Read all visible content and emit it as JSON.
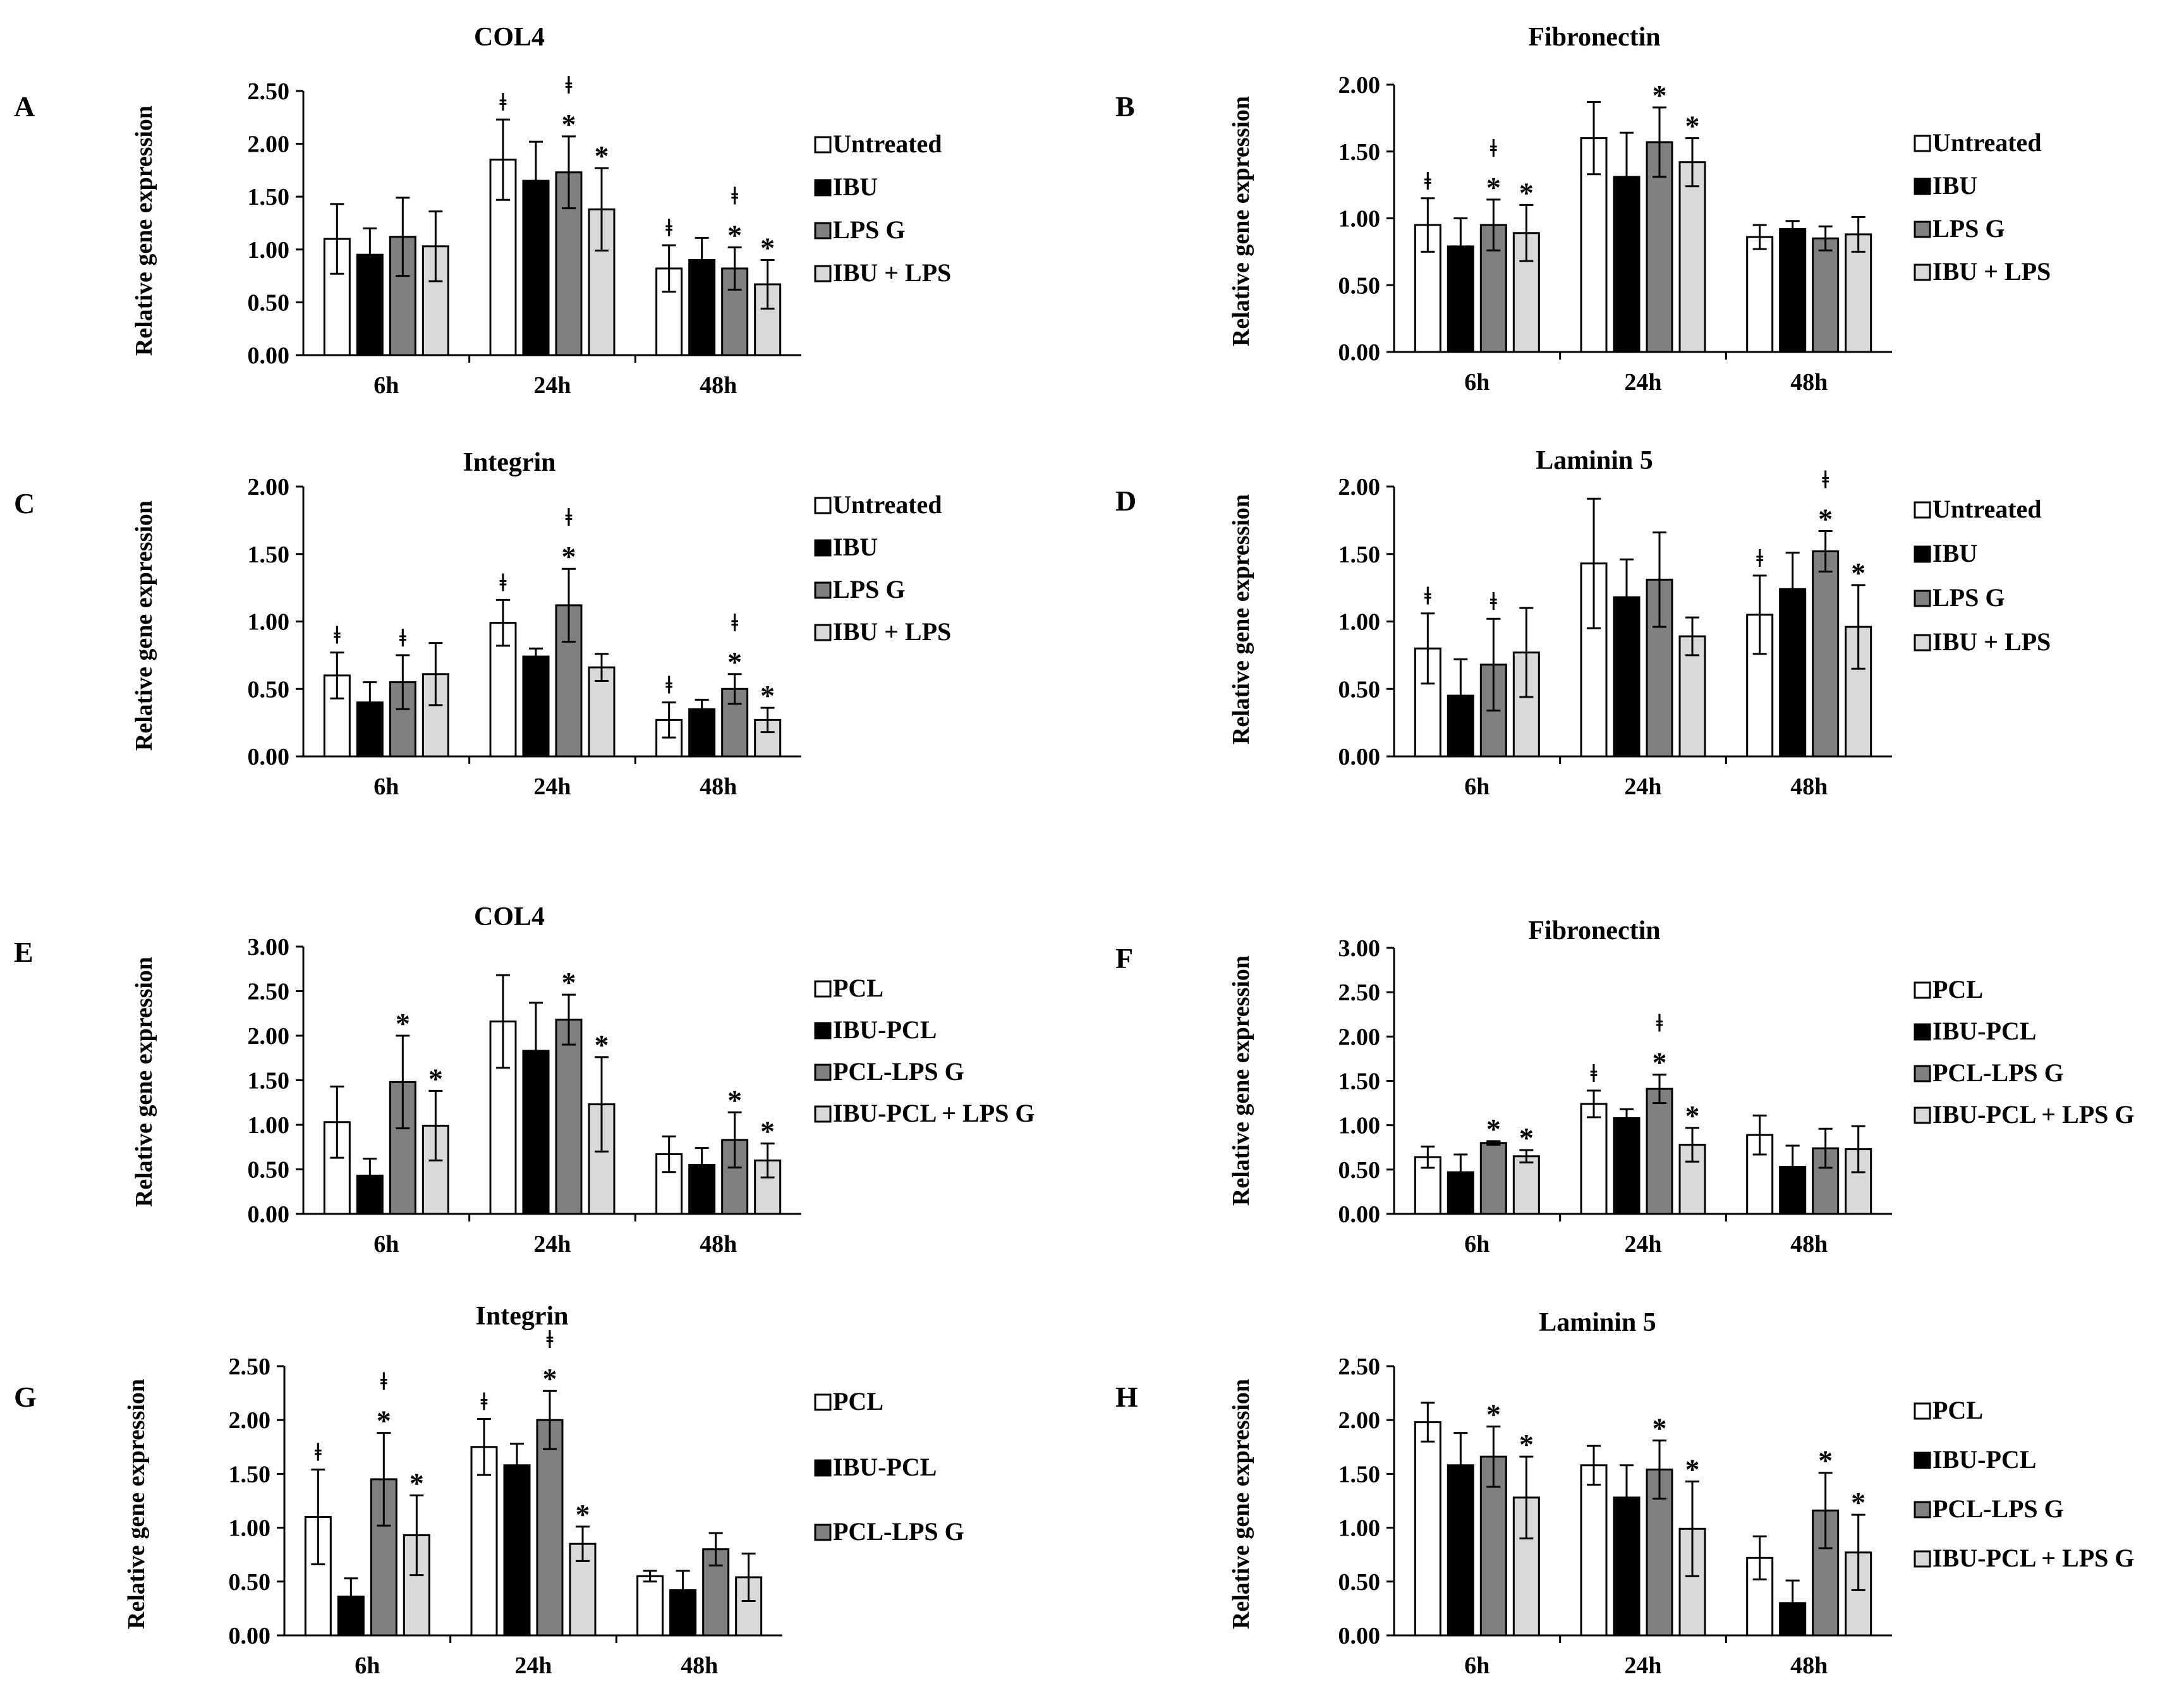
{
  "figure": {
    "ylabel": "Relative gene expression",
    "time_points": [
      "6h",
      "24h",
      "48h"
    ]
  },
  "colors": {
    "groups": [
      "#ffffff",
      "#000000",
      "#808080",
      "#d9d9d9"
    ],
    "stroke": "#000000"
  },
  "chart_data": [
    {
      "type": "bar",
      "letter": "A",
      "title": "COL4",
      "categories": [
        "6h",
        "24h",
        "48h"
      ],
      "ylim": [
        0,
        2.5
      ],
      "ticks": [
        "0.00",
        "0.50",
        "1.00",
        "1.50",
        "2.00",
        "2.50"
      ],
      "legend": [
        "Untreated",
        "IBU",
        "LPS G",
        "IBU + LPS"
      ],
      "series": [
        {
          "name": "Untreated",
          "values": [
            1.1,
            1.85,
            0.82
          ],
          "errors": [
            0.33,
            0.38,
            0.22
          ]
        },
        {
          "name": "IBU",
          "values": [
            0.95,
            1.65,
            0.9
          ],
          "errors": [
            0.25,
            0.37,
            0.21
          ]
        },
        {
          "name": "LPS G",
          "values": [
            1.12,
            1.73,
            0.82
          ],
          "errors": [
            0.37,
            0.34,
            0.2
          ]
        },
        {
          "name": "IBU + LPS",
          "values": [
            1.03,
            1.38,
            0.67
          ],
          "errors": [
            0.33,
            0.39,
            0.23
          ]
        }
      ],
      "annotations": [
        {
          "category": 1,
          "series": 0,
          "text": "ǂ"
        },
        {
          "category": 1,
          "series": 2,
          "text": "ǂ*"
        },
        {
          "category": 1,
          "series": 3,
          "text": "*"
        },
        {
          "category": 2,
          "series": 0,
          "text": "ǂ"
        },
        {
          "category": 2,
          "series": 2,
          "text": "ǂ*"
        },
        {
          "category": 2,
          "series": 3,
          "text": "*"
        }
      ]
    },
    {
      "type": "bar",
      "letter": "B",
      "title": "Fibronectin",
      "categories": [
        "6h",
        "24h",
        "48h"
      ],
      "ylim": [
        0,
        2.0
      ],
      "ticks": [
        "0.00",
        "0.50",
        "1.00",
        "1.50",
        "2.00"
      ],
      "legend": [
        "Untreated",
        "IBU",
        "LPS G",
        "IBU + LPS"
      ],
      "series": [
        {
          "name": "Untreated",
          "values": [
            0.95,
            1.6,
            0.86
          ],
          "errors": [
            0.2,
            0.27,
            0.09
          ]
        },
        {
          "name": "IBU",
          "values": [
            0.79,
            1.31,
            0.92
          ],
          "errors": [
            0.21,
            0.33,
            0.06
          ]
        },
        {
          "name": "LPS G",
          "values": [
            0.95,
            1.57,
            0.85
          ],
          "errors": [
            0.19,
            0.26,
            0.09
          ]
        },
        {
          "name": "IBU + LPS",
          "values": [
            0.89,
            1.42,
            0.88
          ],
          "errors": [
            0.21,
            0.18,
            0.13
          ]
        }
      ],
      "annotations": [
        {
          "category": 0,
          "series": 0,
          "text": "ǂ"
        },
        {
          "category": 0,
          "series": 2,
          "text": "ǂ*"
        },
        {
          "category": 0,
          "series": 3,
          "text": "*"
        },
        {
          "category": 1,
          "series": 2,
          "text": "*"
        },
        {
          "category": 1,
          "series": 3,
          "text": "*"
        }
      ]
    },
    {
      "type": "bar",
      "letter": "C",
      "title": "Integrin",
      "categories": [
        "6h",
        "24h",
        "48h"
      ],
      "ylim": [
        0,
        2.0
      ],
      "ticks": [
        "0.00",
        "0.50",
        "1.00",
        "1.50",
        "2.00"
      ],
      "legend": [
        "Untreated",
        "IBU",
        "LPS G",
        "IBU + LPS"
      ],
      "series": [
        {
          "name": "Untreated",
          "values": [
            0.6,
            0.99,
            0.27
          ],
          "errors": [
            0.17,
            0.17,
            0.13
          ]
        },
        {
          "name": "IBU",
          "values": [
            0.4,
            0.74,
            0.35
          ],
          "errors": [
            0.15,
            0.06,
            0.07
          ]
        },
        {
          "name": "LPS G",
          "values": [
            0.55,
            1.12,
            0.5
          ],
          "errors": [
            0.2,
            0.27,
            0.11
          ]
        },
        {
          "name": "IBU + LPS",
          "values": [
            0.61,
            0.66,
            0.27
          ],
          "errors": [
            0.23,
            0.1,
            0.09
          ]
        }
      ],
      "annotations": [
        {
          "category": 0,
          "series": 0,
          "text": "ǂ"
        },
        {
          "category": 0,
          "series": 2,
          "text": "ǂ"
        },
        {
          "category": 1,
          "series": 0,
          "text": "ǂ"
        },
        {
          "category": 1,
          "series": 2,
          "text": "ǂ*"
        },
        {
          "category": 2,
          "series": 0,
          "text": "ǂ"
        },
        {
          "category": 2,
          "series": 2,
          "text": "ǂ*"
        },
        {
          "category": 2,
          "series": 3,
          "text": "*"
        }
      ]
    },
    {
      "type": "bar",
      "letter": "D",
      "title": "Laminin 5",
      "categories": [
        "6h",
        "24h",
        "48h"
      ],
      "ylim": [
        0,
        2.0
      ],
      "ticks": [
        "0.00",
        "0.50",
        "1.00",
        "1.50",
        "2.00"
      ],
      "legend": [
        "Untreated",
        "IBU",
        "LPS G",
        "IBU + LPS"
      ],
      "series": [
        {
          "name": "Untreated",
          "values": [
            0.8,
            1.43,
            1.05
          ],
          "errors": [
            0.26,
            0.48,
            0.29
          ]
        },
        {
          "name": "IBU",
          "values": [
            0.45,
            1.18,
            1.24
          ],
          "errors": [
            0.27,
            0.28,
            0.27
          ]
        },
        {
          "name": "LPS G",
          "values": [
            0.68,
            1.31,
            1.52
          ],
          "errors": [
            0.34,
            0.35,
            0.15
          ]
        },
        {
          "name": "IBU + LPS",
          "values": [
            0.77,
            0.89,
            0.96
          ],
          "errors": [
            0.33,
            0.14,
            0.31
          ]
        }
      ],
      "annotations": [
        {
          "category": 0,
          "series": 0,
          "text": "ǂ"
        },
        {
          "category": 0,
          "series": 2,
          "text": "ǂ"
        },
        {
          "category": 2,
          "series": 0,
          "text": "ǂ"
        },
        {
          "category": 2,
          "series": 2,
          "text": "ǂ*"
        },
        {
          "category": 2,
          "series": 3,
          "text": "*"
        }
      ]
    },
    {
      "type": "bar",
      "letter": "E",
      "title": "COL4",
      "categories": [
        "6h",
        "24h",
        "48h"
      ],
      "ylim": [
        0,
        3.0
      ],
      "ticks": [
        "0.00",
        "0.50",
        "1.00",
        "1.50",
        "2.00",
        "2.50",
        "3.00"
      ],
      "legend": [
        "PCL",
        "IBU-PCL",
        "PCL-LPS G",
        "IBU-PCL + LPS G"
      ],
      "series": [
        {
          "name": "PCL",
          "values": [
            1.03,
            2.16,
            0.67
          ],
          "errors": [
            0.4,
            0.52,
            0.2
          ]
        },
        {
          "name": "IBU-PCL",
          "values": [
            0.43,
            1.83,
            0.55
          ],
          "errors": [
            0.19,
            0.54,
            0.19
          ]
        },
        {
          "name": "PCL-LPS G",
          "values": [
            1.48,
            2.18,
            0.83
          ],
          "errors": [
            0.52,
            0.28,
            0.31
          ]
        },
        {
          "name": "IBU-PCL + LPS G",
          "values": [
            0.99,
            1.23,
            0.6
          ],
          "errors": [
            0.39,
            0.53,
            0.19
          ]
        }
      ],
      "annotations": [
        {
          "category": 0,
          "series": 2,
          "text": "*"
        },
        {
          "category": 0,
          "series": 3,
          "text": "*"
        },
        {
          "category": 1,
          "series": 2,
          "text": "*"
        },
        {
          "category": 1,
          "series": 3,
          "text": "*"
        },
        {
          "category": 2,
          "series": 2,
          "text": "*"
        },
        {
          "category": 2,
          "series": 3,
          "text": "*"
        }
      ]
    },
    {
      "type": "bar",
      "letter": "F",
      "title": "Fibronectin",
      "categories": [
        "6h",
        "24h",
        "48h"
      ],
      "ylim": [
        0,
        3.0
      ],
      "ticks": [
        "0.00",
        "0.50",
        "1.00",
        "1.50",
        "2.00",
        "2.50",
        "3.00"
      ],
      "legend": [
        "PCL",
        "IBU-PCL",
        "PCL-LPS G",
        "IBU-PCL + LPS G"
      ],
      "series": [
        {
          "name": "PCL",
          "values": [
            0.64,
            1.24,
            0.89
          ],
          "errors": [
            0.12,
            0.15,
            0.22
          ]
        },
        {
          "name": "IBU-PCL",
          "values": [
            0.47,
            1.08,
            0.53
          ],
          "errors": [
            0.2,
            0.1,
            0.24
          ]
        },
        {
          "name": "PCL-LPS G",
          "values": [
            0.8,
            1.41,
            0.74
          ],
          "errors": [
            0.02,
            0.16,
            0.22
          ]
        },
        {
          "name": "IBU-PCL + LPS G",
          "values": [
            0.65,
            0.78,
            0.73
          ],
          "errors": [
            0.07,
            0.19,
            0.26
          ]
        }
      ],
      "annotations": [
        {
          "category": 0,
          "series": 2,
          "text": "*"
        },
        {
          "category": 0,
          "series": 3,
          "text": "*"
        },
        {
          "category": 1,
          "series": 0,
          "text": "ǂ"
        },
        {
          "category": 1,
          "series": 2,
          "text": "ǂ*"
        },
        {
          "category": 1,
          "series": 3,
          "text": "*"
        }
      ]
    },
    {
      "type": "bar",
      "letter": "G",
      "title": "Integrin",
      "categories": [
        "6h",
        "24h",
        "48h"
      ],
      "ylim": [
        0,
        2.5
      ],
      "ticks": [
        "0.00",
        "0.50",
        "1.00",
        "1.50",
        "2.00",
        "2.50"
      ],
      "legend": [
        "PCL",
        "IBU-PCL",
        "PCL-LPS G"
      ],
      "series": [
        {
          "name": "PCL",
          "values": [
            1.1,
            1.75,
            0.55
          ],
          "errors": [
            0.44,
            0.26,
            0.05
          ]
        },
        {
          "name": "IBU-PCL",
          "values": [
            0.36,
            1.58,
            0.42
          ],
          "errors": [
            0.17,
            0.2,
            0.18
          ]
        },
        {
          "name": "PCL-LPS G",
          "values": [
            1.45,
            2.0,
            0.8
          ],
          "errors": [
            0.43,
            0.27,
            0.15
          ]
        },
        {
          "name": "",
          "values": [
            0.93,
            0.85,
            0.54
          ],
          "errors": [
            0.37,
            0.16,
            0.22
          ]
        }
      ],
      "annotations": [
        {
          "category": 0,
          "series": 0,
          "text": "ǂ"
        },
        {
          "category": 0,
          "series": 2,
          "text": "ǂ*"
        },
        {
          "category": 0,
          "series": 3,
          "text": "*"
        },
        {
          "category": 1,
          "series": 0,
          "text": "ǂ"
        },
        {
          "category": 1,
          "series": 2,
          "text": "ǂ*"
        },
        {
          "category": 1,
          "series": 3,
          "text": "*"
        }
      ]
    },
    {
      "type": "bar",
      "letter": "H",
      "title": "Laminin 5",
      "categories": [
        "6h",
        "24h",
        "48h"
      ],
      "ylim": [
        0,
        2.5
      ],
      "ticks": [
        "0.00",
        "0.50",
        "1.00",
        "1.50",
        "2.00",
        "2.50"
      ],
      "legend": [
        "PCL",
        "IBU-PCL",
        "PCL-LPS G",
        "IBU-PCL + LPS G"
      ],
      "series": [
        {
          "name": "PCL",
          "values": [
            1.98,
            1.58,
            0.72
          ],
          "errors": [
            0.18,
            0.18,
            0.2
          ]
        },
        {
          "name": "IBU-PCL",
          "values": [
            1.58,
            1.28,
            0.3
          ],
          "errors": [
            0.3,
            0.3,
            0.21
          ]
        },
        {
          "name": "PCL-LPS G",
          "values": [
            1.66,
            1.54,
            1.16
          ],
          "errors": [
            0.28,
            0.27,
            0.35
          ]
        },
        {
          "name": "IBU-PCL + LPS G",
          "values": [
            1.28,
            0.99,
            0.77
          ],
          "errors": [
            0.38,
            0.44,
            0.35
          ]
        }
      ],
      "annotations": [
        {
          "category": 0,
          "series": 2,
          "text": "*"
        },
        {
          "category": 0,
          "series": 3,
          "text": "*"
        },
        {
          "category": 1,
          "series": 2,
          "text": "*"
        },
        {
          "category": 1,
          "series": 3,
          "text": "*"
        },
        {
          "category": 2,
          "series": 2,
          "text": "*"
        },
        {
          "category": 2,
          "series": 3,
          "text": "*"
        }
      ]
    }
  ]
}
